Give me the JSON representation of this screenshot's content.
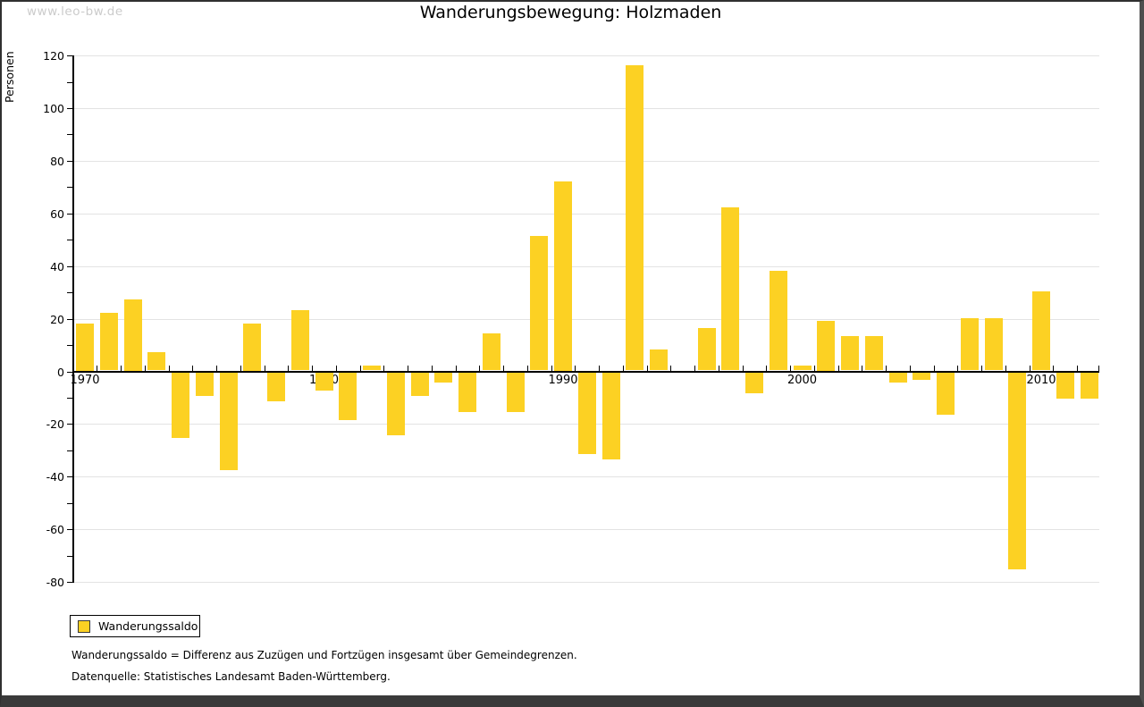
{
  "watermark": "www.leo-bw.de",
  "title": "Wanderungsbewegung: Holzmaden",
  "y_axis_label": "Personen",
  "legend": {
    "label": "Wanderungssaldo"
  },
  "footnotes": [
    "Wanderungssaldo = Differenz aus Zuzügen und Fortzügen insgesamt über Gemeindegrenzen.",
    "Datenquelle: Statistisches Landesamt Baden-Württemberg."
  ],
  "colors": {
    "bar": "#FCD123",
    "gridline": "#E3E3E3",
    "axis": "#000000",
    "watermark": "#CBCBCB",
    "frame": "#3A3A3A"
  },
  "chart_data": {
    "type": "bar",
    "title": "Wanderungsbewegung: Holzmaden",
    "xlabel": "",
    "ylabel": "Personen",
    "ylim": [
      -80,
      120
    ],
    "ytick_step": 20,
    "ytick_minor_step": 10,
    "y_tick_labels": [
      120,
      100,
      80,
      60,
      40,
      20,
      0,
      -20,
      -40,
      -60,
      -80
    ],
    "grid": "horizontal",
    "legend_position": "bottom-left",
    "x_decade_labels": [
      1970,
      1980,
      1990,
      2000,
      2010
    ],
    "x": [
      1970,
      1971,
      1972,
      1973,
      1974,
      1975,
      1976,
      1977,
      1978,
      1979,
      1980,
      1981,
      1982,
      1983,
      1984,
      1985,
      1986,
      1987,
      1988,
      1989,
      1990,
      1991,
      1992,
      1993,
      1994,
      1995,
      1996,
      1997,
      1998,
      1999,
      2000,
      2001,
      2002,
      2003,
      2004,
      2005,
      2006,
      2007,
      2008,
      2009,
      2010,
      2011,
      2012
    ],
    "series": [
      {
        "name": "Wanderungssaldo",
        "values": [
          18,
          22,
          27,
          7,
          -25,
          -9,
          -37,
          18,
          -11,
          23,
          -7,
          -18,
          2,
          -24,
          -9,
          -4,
          -15,
          14,
          -15,
          51,
          72,
          -31,
          -33,
          116,
          8,
          0,
          16,
          62,
          -8,
          38,
          2,
          19,
          13,
          13,
          -4,
          -3,
          -16,
          20,
          20,
          -75,
          30,
          -10,
          -10
        ]
      }
    ]
  }
}
